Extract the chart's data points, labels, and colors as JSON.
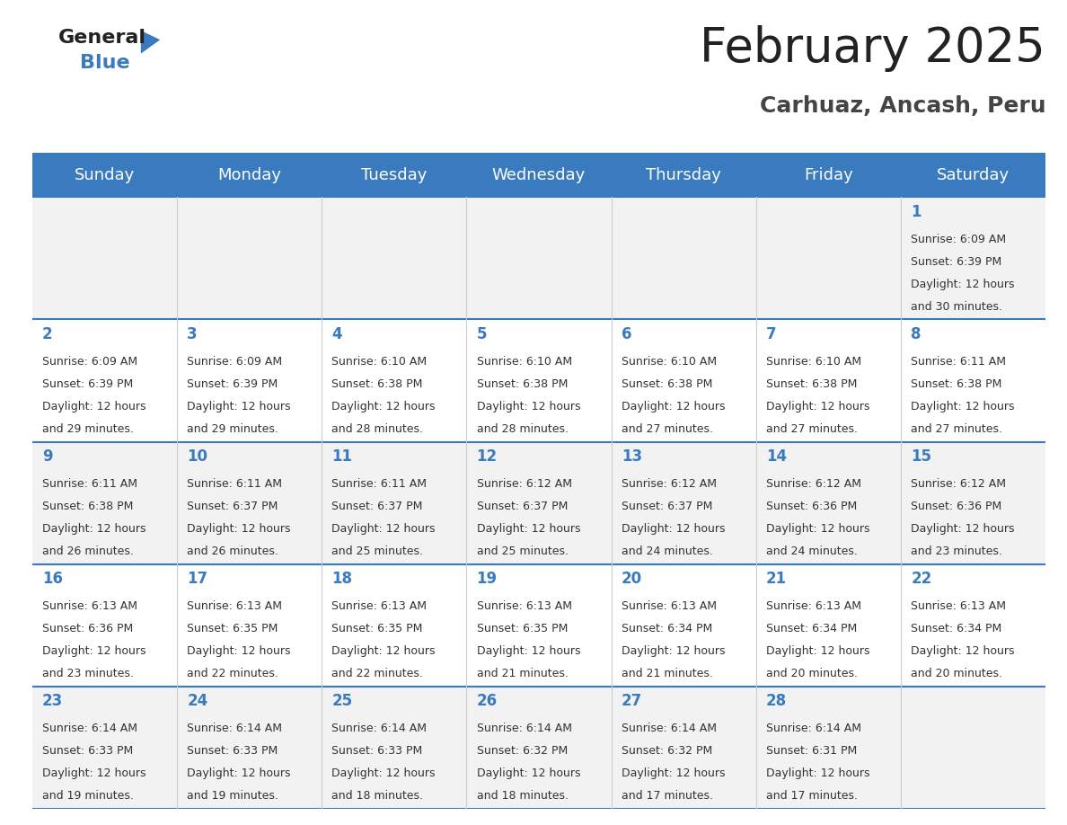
{
  "title": "February 2025",
  "subtitle": "Carhuaz, Ancash, Peru",
  "header_bg": "#3a7abf",
  "header_text_color": "#ffffff",
  "day_names": [
    "Sunday",
    "Monday",
    "Tuesday",
    "Wednesday",
    "Thursday",
    "Friday",
    "Saturday"
  ],
  "row_bg": [
    "#f2f2f2",
    "#ffffff",
    "#f2f2f2",
    "#ffffff",
    "#f2f2f2"
  ],
  "cell_border_color": "#3a7abf",
  "number_color": "#3a7abf",
  "text_color": "#333333",
  "title_fontsize": 38,
  "subtitle_fontsize": 18,
  "header_fontsize": 13,
  "day_num_fontsize": 12,
  "cell_text_fontsize": 9,
  "calendar_data": [
    [
      null,
      null,
      null,
      null,
      null,
      null,
      {
        "day": "1",
        "sunrise": "6:09 AM",
        "sunset": "6:39 PM",
        "daylight_line1": "Daylight: 12 hours",
        "daylight_line2": "and 30 minutes."
      }
    ],
    [
      {
        "day": "2",
        "sunrise": "6:09 AM",
        "sunset": "6:39 PM",
        "daylight_line1": "Daylight: 12 hours",
        "daylight_line2": "and 29 minutes."
      },
      {
        "day": "3",
        "sunrise": "6:09 AM",
        "sunset": "6:39 PM",
        "daylight_line1": "Daylight: 12 hours",
        "daylight_line2": "and 29 minutes."
      },
      {
        "day": "4",
        "sunrise": "6:10 AM",
        "sunset": "6:38 PM",
        "daylight_line1": "Daylight: 12 hours",
        "daylight_line2": "and 28 minutes."
      },
      {
        "day": "5",
        "sunrise": "6:10 AM",
        "sunset": "6:38 PM",
        "daylight_line1": "Daylight: 12 hours",
        "daylight_line2": "and 28 minutes."
      },
      {
        "day": "6",
        "sunrise": "6:10 AM",
        "sunset": "6:38 PM",
        "daylight_line1": "Daylight: 12 hours",
        "daylight_line2": "and 27 minutes."
      },
      {
        "day": "7",
        "sunrise": "6:10 AM",
        "sunset": "6:38 PM",
        "daylight_line1": "Daylight: 12 hours",
        "daylight_line2": "and 27 minutes."
      },
      {
        "day": "8",
        "sunrise": "6:11 AM",
        "sunset": "6:38 PM",
        "daylight_line1": "Daylight: 12 hours",
        "daylight_line2": "and 27 minutes."
      }
    ],
    [
      {
        "day": "9",
        "sunrise": "6:11 AM",
        "sunset": "6:38 PM",
        "daylight_line1": "Daylight: 12 hours",
        "daylight_line2": "and 26 minutes."
      },
      {
        "day": "10",
        "sunrise": "6:11 AM",
        "sunset": "6:37 PM",
        "daylight_line1": "Daylight: 12 hours",
        "daylight_line2": "and 26 minutes."
      },
      {
        "day": "11",
        "sunrise": "6:11 AM",
        "sunset": "6:37 PM",
        "daylight_line1": "Daylight: 12 hours",
        "daylight_line2": "and 25 minutes."
      },
      {
        "day": "12",
        "sunrise": "6:12 AM",
        "sunset": "6:37 PM",
        "daylight_line1": "Daylight: 12 hours",
        "daylight_line2": "and 25 minutes."
      },
      {
        "day": "13",
        "sunrise": "6:12 AM",
        "sunset": "6:37 PM",
        "daylight_line1": "Daylight: 12 hours",
        "daylight_line2": "and 24 minutes."
      },
      {
        "day": "14",
        "sunrise": "6:12 AM",
        "sunset": "6:36 PM",
        "daylight_line1": "Daylight: 12 hours",
        "daylight_line2": "and 24 minutes."
      },
      {
        "day": "15",
        "sunrise": "6:12 AM",
        "sunset": "6:36 PM",
        "daylight_line1": "Daylight: 12 hours",
        "daylight_line2": "and 23 minutes."
      }
    ],
    [
      {
        "day": "16",
        "sunrise": "6:13 AM",
        "sunset": "6:36 PM",
        "daylight_line1": "Daylight: 12 hours",
        "daylight_line2": "and 23 minutes."
      },
      {
        "day": "17",
        "sunrise": "6:13 AM",
        "sunset": "6:35 PM",
        "daylight_line1": "Daylight: 12 hours",
        "daylight_line2": "and 22 minutes."
      },
      {
        "day": "18",
        "sunrise": "6:13 AM",
        "sunset": "6:35 PM",
        "daylight_line1": "Daylight: 12 hours",
        "daylight_line2": "and 22 minutes."
      },
      {
        "day": "19",
        "sunrise": "6:13 AM",
        "sunset": "6:35 PM",
        "daylight_line1": "Daylight: 12 hours",
        "daylight_line2": "and 21 minutes."
      },
      {
        "day": "20",
        "sunrise": "6:13 AM",
        "sunset": "6:34 PM",
        "daylight_line1": "Daylight: 12 hours",
        "daylight_line2": "and 21 minutes."
      },
      {
        "day": "21",
        "sunrise": "6:13 AM",
        "sunset": "6:34 PM",
        "daylight_line1": "Daylight: 12 hours",
        "daylight_line2": "and 20 minutes."
      },
      {
        "day": "22",
        "sunrise": "6:13 AM",
        "sunset": "6:34 PM",
        "daylight_line1": "Daylight: 12 hours",
        "daylight_line2": "and 20 minutes."
      }
    ],
    [
      {
        "day": "23",
        "sunrise": "6:14 AM",
        "sunset": "6:33 PM",
        "daylight_line1": "Daylight: 12 hours",
        "daylight_line2": "and 19 minutes."
      },
      {
        "day": "24",
        "sunrise": "6:14 AM",
        "sunset": "6:33 PM",
        "daylight_line1": "Daylight: 12 hours",
        "daylight_line2": "and 19 minutes."
      },
      {
        "day": "25",
        "sunrise": "6:14 AM",
        "sunset": "6:33 PM",
        "daylight_line1": "Daylight: 12 hours",
        "daylight_line2": "and 18 minutes."
      },
      {
        "day": "26",
        "sunrise": "6:14 AM",
        "sunset": "6:32 PM",
        "daylight_line1": "Daylight: 12 hours",
        "daylight_line2": "and 18 minutes."
      },
      {
        "day": "27",
        "sunrise": "6:14 AM",
        "sunset": "6:32 PM",
        "daylight_line1": "Daylight: 12 hours",
        "daylight_line2": "and 17 minutes."
      },
      {
        "day": "28",
        "sunrise": "6:14 AM",
        "sunset": "6:31 PM",
        "daylight_line1": "Daylight: 12 hours",
        "daylight_line2": "and 17 minutes."
      },
      null
    ]
  ],
  "logo_general_color": "#222222",
  "logo_blue_color": "#3a7abf",
  "logo_triangle_color": "#3a7abf"
}
